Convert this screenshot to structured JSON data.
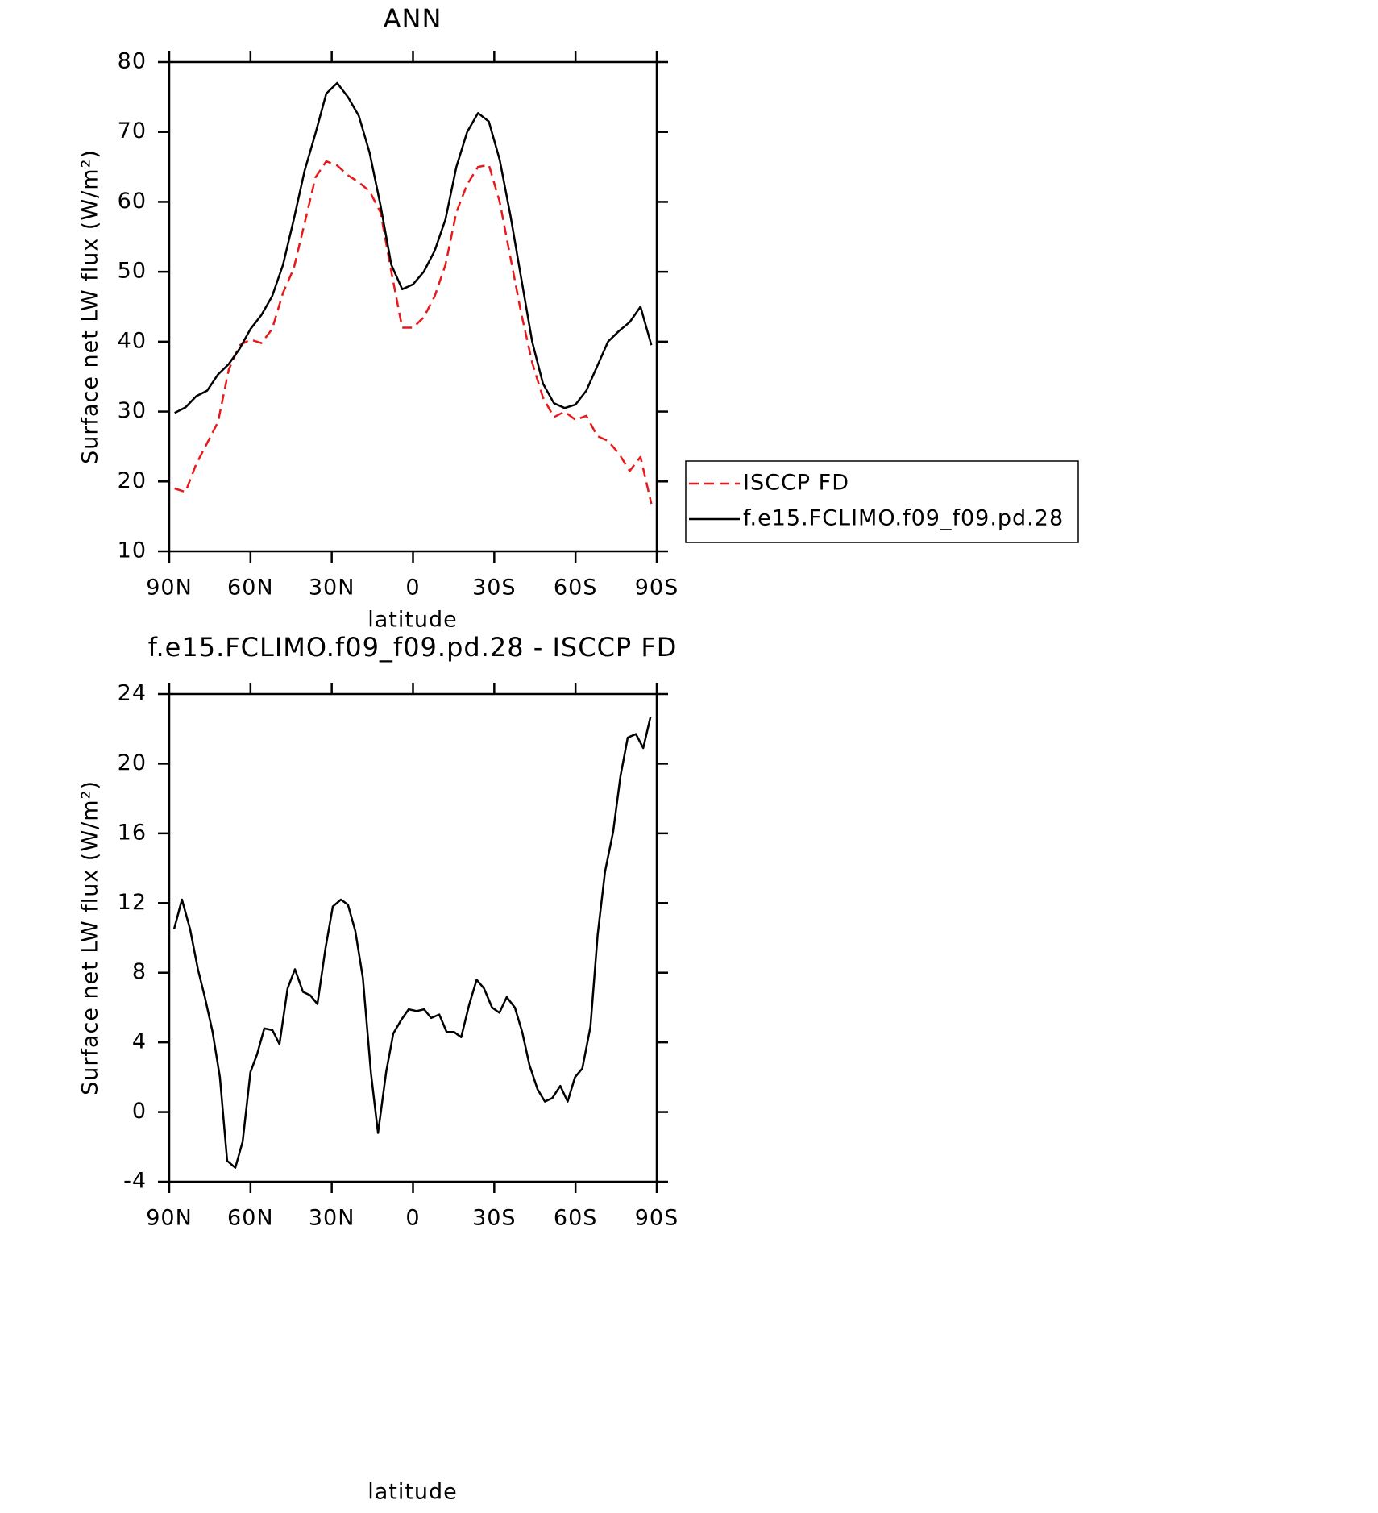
{
  "chart_data": [
    {
      "type": "line",
      "title": "ANN",
      "xlabel": "latitude",
      "ylabel": "Surface net LW flux (W/m²)",
      "x": [
        88,
        84,
        80,
        76,
        72,
        68,
        64,
        60,
        56,
        52,
        48,
        44,
        40,
        36,
        32,
        28,
        24,
        20,
        16,
        12,
        8,
        4,
        0,
        -4,
        -8,
        -12,
        -16,
        -20,
        -24,
        -28,
        -32,
        -36,
        -40,
        -44,
        -48,
        -52,
        -56,
        -60,
        -64,
        -68,
        -72,
        -76,
        -80,
        -84,
        -88
      ],
      "xlim": [
        90,
        -90
      ],
      "xticks": [
        {
          "value": 90,
          "label": "90N"
        },
        {
          "value": 60,
          "label": "60N"
        },
        {
          "value": 30,
          "label": "30N"
        },
        0,
        {
          "value": -30,
          "label": "30S"
        },
        {
          "value": -60,
          "label": "60S"
        },
        {
          "value": -90,
          "label": "90S"
        }
      ],
      "ylim": [
        10,
        80
      ],
      "yticks": [
        10,
        20,
        30,
        40,
        50,
        60,
        70,
        80
      ],
      "legend": "right",
      "series": [
        {
          "name": "ISCCP FD",
          "color": "#e8191b",
          "dash": true,
          "values": [
            19,
            18.5,
            22.5,
            25.5,
            28.5,
            36,
            39.5,
            40.3,
            39.8,
            41.8,
            47,
            50.5,
            57,
            63.5,
            65.8,
            65.2,
            63.8,
            62.8,
            61.5,
            58.5,
            50,
            42,
            42,
            43.5,
            46.5,
            51,
            58.5,
            62.5,
            65,
            65.3,
            60,
            52,
            44,
            37,
            32,
            29.2,
            30,
            28.8,
            29.4,
            26.5,
            25.8,
            24,
            21.5,
            23.5,
            16.8
          ]
        },
        {
          "name": "f.e15.FCLIMO.f09_f09.pd.28",
          "color": "#000000",
          "dash": false,
          "values": [
            29.8,
            30.6,
            32.2,
            33,
            35.3,
            36.8,
            39,
            41.8,
            43.8,
            46.5,
            51,
            57.5,
            64.5,
            69.8,
            75.5,
            77,
            75,
            72.3,
            67,
            59.5,
            51,
            47.5,
            48.2,
            50,
            53,
            57.5,
            65,
            70,
            72.7,
            71.5,
            66,
            58,
            49,
            40,
            34,
            31.2,
            30.5,
            31,
            33,
            36.5,
            40,
            41.5,
            42.8,
            45,
            39.5
          ]
        }
      ]
    },
    {
      "type": "line",
      "title": "f.e15.FCLIMO.f09_f09.pd.28 - ISCCP FD",
      "xlabel": "latitude",
      "ylabel": "Surface net LW flux (W/m²)",
      "x": [
        88.2,
        85.3,
        82.3,
        79.4,
        76.7,
        74.0,
        71.3,
        68.6,
        65.6,
        62.9,
        60.0,
        57.6,
        54.9,
        51.9,
        49.3,
        46.3,
        43.6,
        40.6,
        37.9,
        35.3,
        32.3,
        29.6,
        26.6,
        24.0,
        21.3,
        18.5,
        15.5,
        12.9,
        9.9,
        7.3,
        4.3,
        1.6,
        -1.4,
        -4.1,
        -6.7,
        -9.7,
        -12.4,
        -15.1,
        -17.8,
        -20.8,
        -23.5,
        -26.2,
        -29.2,
        -31.9,
        -34.6,
        -37.6,
        -40.3,
        -43.0,
        -46.0,
        -48.7,
        -51.4,
        -54.4,
        -57.1,
        -59.8,
        -62.5,
        -65.5,
        -68.2,
        -70.9,
        -73.9,
        -76.6,
        -79.3,
        -82.3,
        -85.0,
        -87.7
      ],
      "xlim": [
        90,
        -90
      ],
      "xticks": [
        {
          "value": 90,
          "label": "90N"
        },
        {
          "value": 60,
          "label": "60N"
        },
        {
          "value": 30,
          "label": "30N"
        },
        0,
        {
          "value": -30,
          "label": "30S"
        },
        {
          "value": -60,
          "label": "60S"
        },
        {
          "value": -90,
          "label": "90S"
        }
      ],
      "ylim": [
        -4,
        24
      ],
      "yticks": [
        -4,
        0,
        4,
        8,
        12,
        16,
        20,
        24
      ],
      "color": "#000000",
      "values": [
        10.5,
        12.2,
        10.5,
        8.2,
        6.5,
        4.6,
        2,
        -2.8,
        -3.2,
        -1.7,
        2.3,
        3.3,
        4.8,
        4.7,
        3.9,
        7.1,
        8.2,
        6.9,
        6.7,
        6.2,
        9.4,
        11.8,
        12.2,
        11.9,
        10.4,
        7.7,
        2.2,
        -1.2,
        2.3,
        4.5,
        5.3,
        5.9,
        5.8,
        5.9,
        5.4,
        5.6,
        4.6,
        4.6,
        4.3,
        6.2,
        7.6,
        7.1,
        6.0,
        5.7,
        6.6,
        6.0,
        4.6,
        2.7,
        1.3,
        0.6,
        0.8,
        1.5,
        0.6,
        2.0,
        2.5,
        4.9,
        10.2,
        13.8,
        16.1,
        19.3,
        21.5,
        21.7,
        20.9,
        22.7
      ]
    }
  ]
}
